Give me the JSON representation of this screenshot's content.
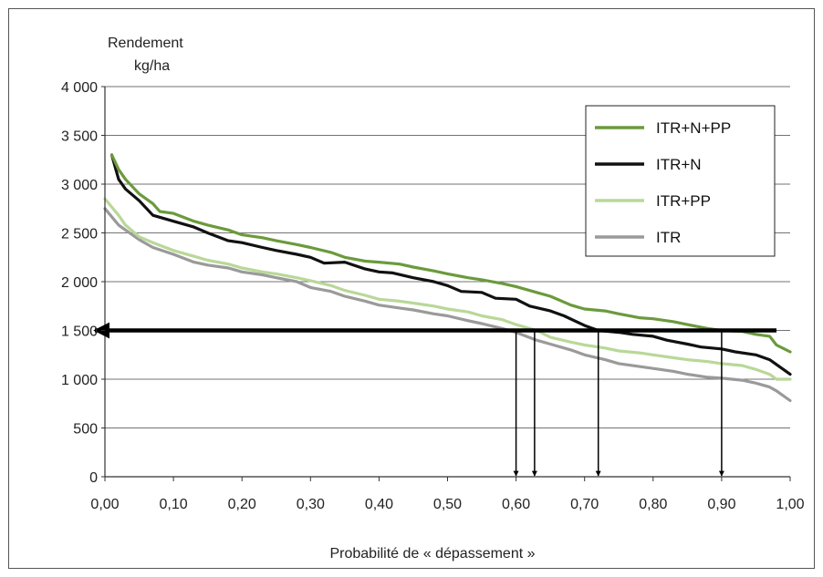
{
  "chart_data": {
    "type": "line",
    "title": "",
    "ylabel_line1": "Rendement",
    "ylabel_line2": "kg/ha",
    "xlabel": "Probabilité de « dépassement »",
    "xlim": [
      0,
      1
    ],
    "ylim": [
      0,
      4000
    ],
    "x_ticks": [
      0,
      0.1,
      0.2,
      0.3,
      0.4,
      0.5,
      0.6,
      0.7,
      0.8,
      0.9,
      1.0
    ],
    "x_tick_labels": [
      "0,00",
      "0,10",
      "0,20",
      "0,30",
      "0,40",
      "0,50",
      "0,60",
      "0,70",
      "0,80",
      "0,90",
      "1,00"
    ],
    "y_ticks": [
      0,
      500,
      1000,
      1500,
      2000,
      2500,
      3000,
      3500,
      4000
    ],
    "y_tick_labels": [
      "0",
      "500",
      "1 000",
      "1 500",
      "2 000",
      "2 500",
      "3 000",
      "3 500",
      "4 000"
    ],
    "grid": "horizontal",
    "legend_position": "top-right",
    "series": [
      {
        "name": "ITR+N+PP",
        "color": "#6b9a3c",
        "x": [
          0.01,
          0.02,
          0.03,
          0.05,
          0.07,
          0.08,
          0.1,
          0.13,
          0.15,
          0.18,
          0.2,
          0.23,
          0.25,
          0.28,
          0.3,
          0.33,
          0.35,
          0.38,
          0.4,
          0.43,
          0.45,
          0.48,
          0.5,
          0.53,
          0.55,
          0.58,
          0.6,
          0.63,
          0.65,
          0.68,
          0.7,
          0.73,
          0.75,
          0.78,
          0.8,
          0.83,
          0.85,
          0.88,
          0.9,
          0.93,
          0.95,
          0.97,
          0.98,
          1.0
        ],
        "y": [
          3300,
          3150,
          3050,
          2900,
          2800,
          2720,
          2700,
          2620,
          2580,
          2530,
          2480,
          2450,
          2420,
          2380,
          2350,
          2300,
          2250,
          2210,
          2200,
          2180,
          2150,
          2110,
          2080,
          2040,
          2020,
          1980,
          1950,
          1890,
          1850,
          1760,
          1720,
          1700,
          1670,
          1630,
          1620,
          1590,
          1560,
          1520,
          1500,
          1490,
          1460,
          1440,
          1350,
          1280
        ]
      },
      {
        "name": "ITR+N",
        "color": "#111111",
        "x": [
          0.01,
          0.02,
          0.03,
          0.05,
          0.07,
          0.1,
          0.13,
          0.15,
          0.18,
          0.2,
          0.23,
          0.25,
          0.28,
          0.3,
          0.32,
          0.35,
          0.38,
          0.4,
          0.42,
          0.45,
          0.48,
          0.5,
          0.52,
          0.55,
          0.57,
          0.6,
          0.62,
          0.65,
          0.67,
          0.7,
          0.72,
          0.75,
          0.77,
          0.8,
          0.82,
          0.85,
          0.87,
          0.9,
          0.92,
          0.95,
          0.97,
          1.0
        ],
        "y": [
          3300,
          3050,
          2950,
          2830,
          2680,
          2620,
          2560,
          2500,
          2420,
          2400,
          2350,
          2320,
          2280,
          2250,
          2190,
          2200,
          2130,
          2100,
          2090,
          2040,
          2000,
          1960,
          1900,
          1890,
          1830,
          1820,
          1750,
          1700,
          1650,
          1550,
          1500,
          1480,
          1460,
          1440,
          1400,
          1360,
          1330,
          1310,
          1280,
          1250,
          1200,
          1050
        ]
      },
      {
        "name": "ITR+PP",
        "color": "#b9d898",
        "x": [
          0.0,
          0.02,
          0.03,
          0.05,
          0.07,
          0.1,
          0.13,
          0.15,
          0.18,
          0.2,
          0.23,
          0.25,
          0.28,
          0.3,
          0.33,
          0.35,
          0.38,
          0.4,
          0.43,
          0.45,
          0.48,
          0.5,
          0.53,
          0.55,
          0.58,
          0.6,
          0.63,
          0.65,
          0.68,
          0.7,
          0.73,
          0.75,
          0.78,
          0.8,
          0.83,
          0.85,
          0.88,
          0.9,
          0.93,
          0.95,
          0.97,
          0.98,
          1.0
        ],
        "y": [
          2850,
          2680,
          2580,
          2460,
          2400,
          2320,
          2260,
          2220,
          2180,
          2140,
          2100,
          2080,
          2040,
          2010,
          1960,
          1910,
          1860,
          1820,
          1800,
          1780,
          1750,
          1720,
          1690,
          1650,
          1610,
          1560,
          1500,
          1430,
          1380,
          1350,
          1320,
          1290,
          1270,
          1250,
          1220,
          1200,
          1180,
          1160,
          1140,
          1100,
          1050,
          1000,
          1000
        ]
      },
      {
        "name": "ITR",
        "color": "#9a9a9a",
        "x": [
          0.0,
          0.02,
          0.03,
          0.05,
          0.07,
          0.1,
          0.13,
          0.15,
          0.18,
          0.2,
          0.23,
          0.25,
          0.28,
          0.3,
          0.33,
          0.35,
          0.38,
          0.4,
          0.43,
          0.45,
          0.48,
          0.5,
          0.53,
          0.55,
          0.58,
          0.6,
          0.63,
          0.65,
          0.68,
          0.7,
          0.73,
          0.75,
          0.78,
          0.8,
          0.83,
          0.85,
          0.88,
          0.9,
          0.93,
          0.95,
          0.97,
          0.98,
          1.0
        ],
        "y": [
          2750,
          2580,
          2530,
          2430,
          2350,
          2280,
          2200,
          2170,
          2140,
          2100,
          2070,
          2040,
          2000,
          1940,
          1900,
          1850,
          1800,
          1760,
          1730,
          1710,
          1670,
          1650,
          1600,
          1570,
          1520,
          1480,
          1400,
          1360,
          1300,
          1250,
          1200,
          1160,
          1130,
          1110,
          1080,
          1050,
          1020,
          1010,
          990,
          960,
          920,
          880,
          780
        ]
      }
    ],
    "threshold": {
      "y": 1500,
      "color": "#000000"
    },
    "crossing_arrows_x": [
      0.6,
      0.627,
      0.72,
      0.9
    ]
  }
}
